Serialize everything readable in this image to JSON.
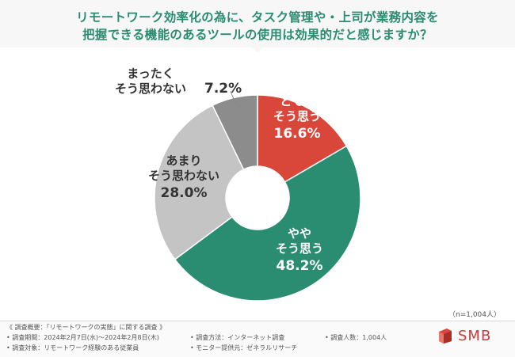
{
  "title": {
    "line1": "リモートワーク効率化の為に、タスク管理や・上司が業務内容を",
    "line2": "把握できる機能のあるツールの使用は効果的だと感じますか？"
  },
  "chart_data": {
    "type": "pie",
    "categories": [
      "とてもそう思う",
      "ややそう思う",
      "あまりそう思わない",
      "まったくそう思わない"
    ],
    "values": [
      16.6,
      48.2,
      28.0,
      7.2
    ],
    "unit": "%",
    "colors": [
      "#d9473b",
      "#2a8c70",
      "#c4c4c4",
      "#8c8c8c"
    ],
    "labels": [
      {
        "lines": [
          "とても",
          "そう思う"
        ],
        "value": "16.6%"
      },
      {
        "lines": [
          "やや",
          "そう思う"
        ],
        "value": "48.2%"
      },
      {
        "lines": [
          "あまり",
          "そう思わない"
        ],
        "value": "28.0%"
      },
      {
        "lines": [
          "まったく",
          "そう思わない"
        ],
        "value": "7.2%"
      }
    ]
  },
  "note": "（n=1,004人）",
  "footer": {
    "overview": "《 調査概要：「リモートワークの実態」に関する調査 》",
    "period": "• 調査期間：2024年2月7日(水)〜2024年2月8日(木)",
    "target": "• 調査対象：リモートワーク経験のある従業員",
    "method": "• 調査方法：インターネット調査",
    "provider": "• モニター提供元：ゼネラルリサーチ",
    "count": "• 調査人数：1,004人",
    "logo": "SMB"
  }
}
